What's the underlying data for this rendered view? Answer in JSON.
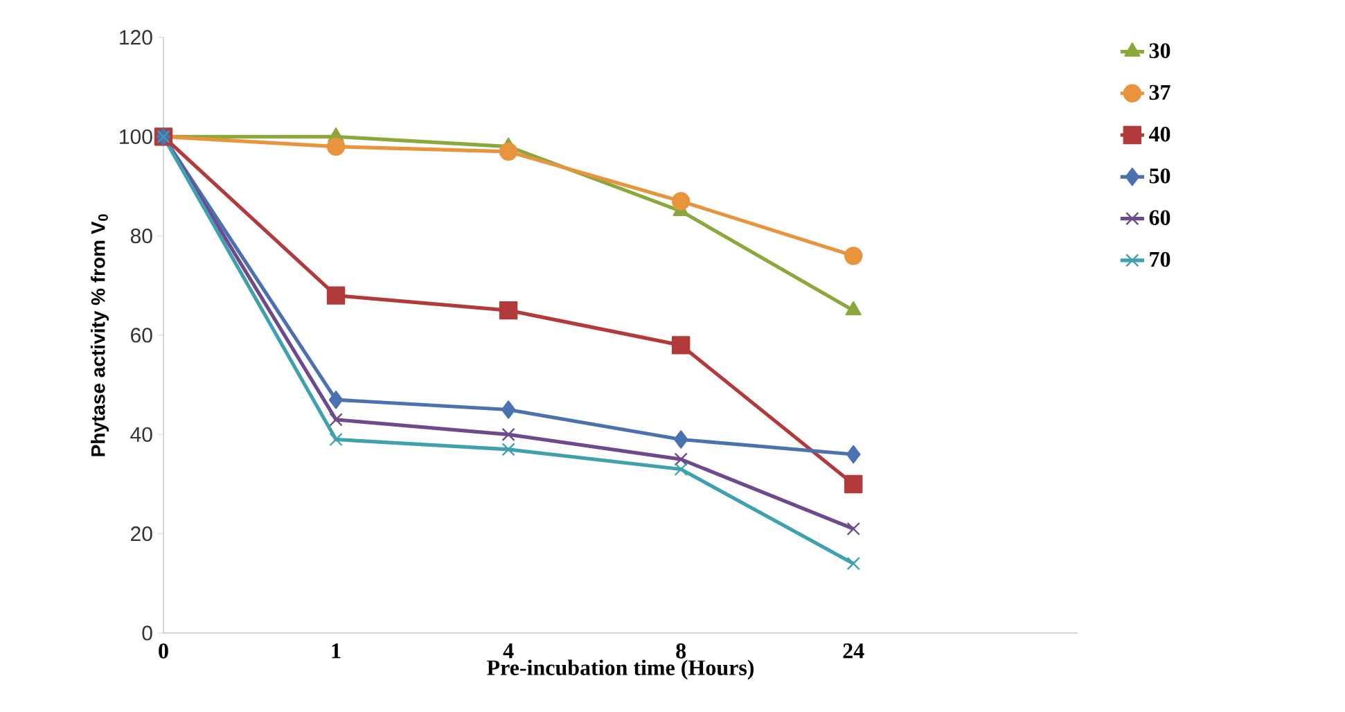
{
  "chart_data": {
    "type": "line",
    "xlabel": "Pre-incubation time (Hours)",
    "ylabel": "Phytase activity % from V$_{0}$",
    "categories": [
      "0",
      "1",
      "4",
      "8",
      "24"
    ],
    "series": [
      {
        "name": "30",
        "color": "#8aa83c",
        "marker": "triangle",
        "values": [
          100,
          100,
          98,
          85,
          65
        ]
      },
      {
        "name": "37",
        "color": "#e8943c",
        "marker": "circle",
        "values": [
          100,
          98,
          97,
          87,
          76
        ]
      },
      {
        "name": "40",
        "color": "#b23a3a",
        "marker": "square",
        "values": [
          100,
          68,
          65,
          58,
          30
        ]
      },
      {
        "name": "50",
        "color": "#4a72b0",
        "marker": "diamond",
        "values": [
          100,
          47,
          45,
          39,
          36
        ]
      },
      {
        "name": "60",
        "color": "#6e4a8c",
        "marker": "cross",
        "values": [
          100,
          43,
          40,
          35,
          21
        ]
      },
      {
        "name": "70",
        "color": "#3fa0b0",
        "marker": "cross",
        "values": [
          100,
          39,
          37,
          33,
          14
        ]
      }
    ],
    "ylim": [
      0,
      120
    ],
    "yticks": [
      0,
      20,
      40,
      60,
      80,
      100,
      120
    ],
    "grid": false,
    "legend": "right"
  }
}
